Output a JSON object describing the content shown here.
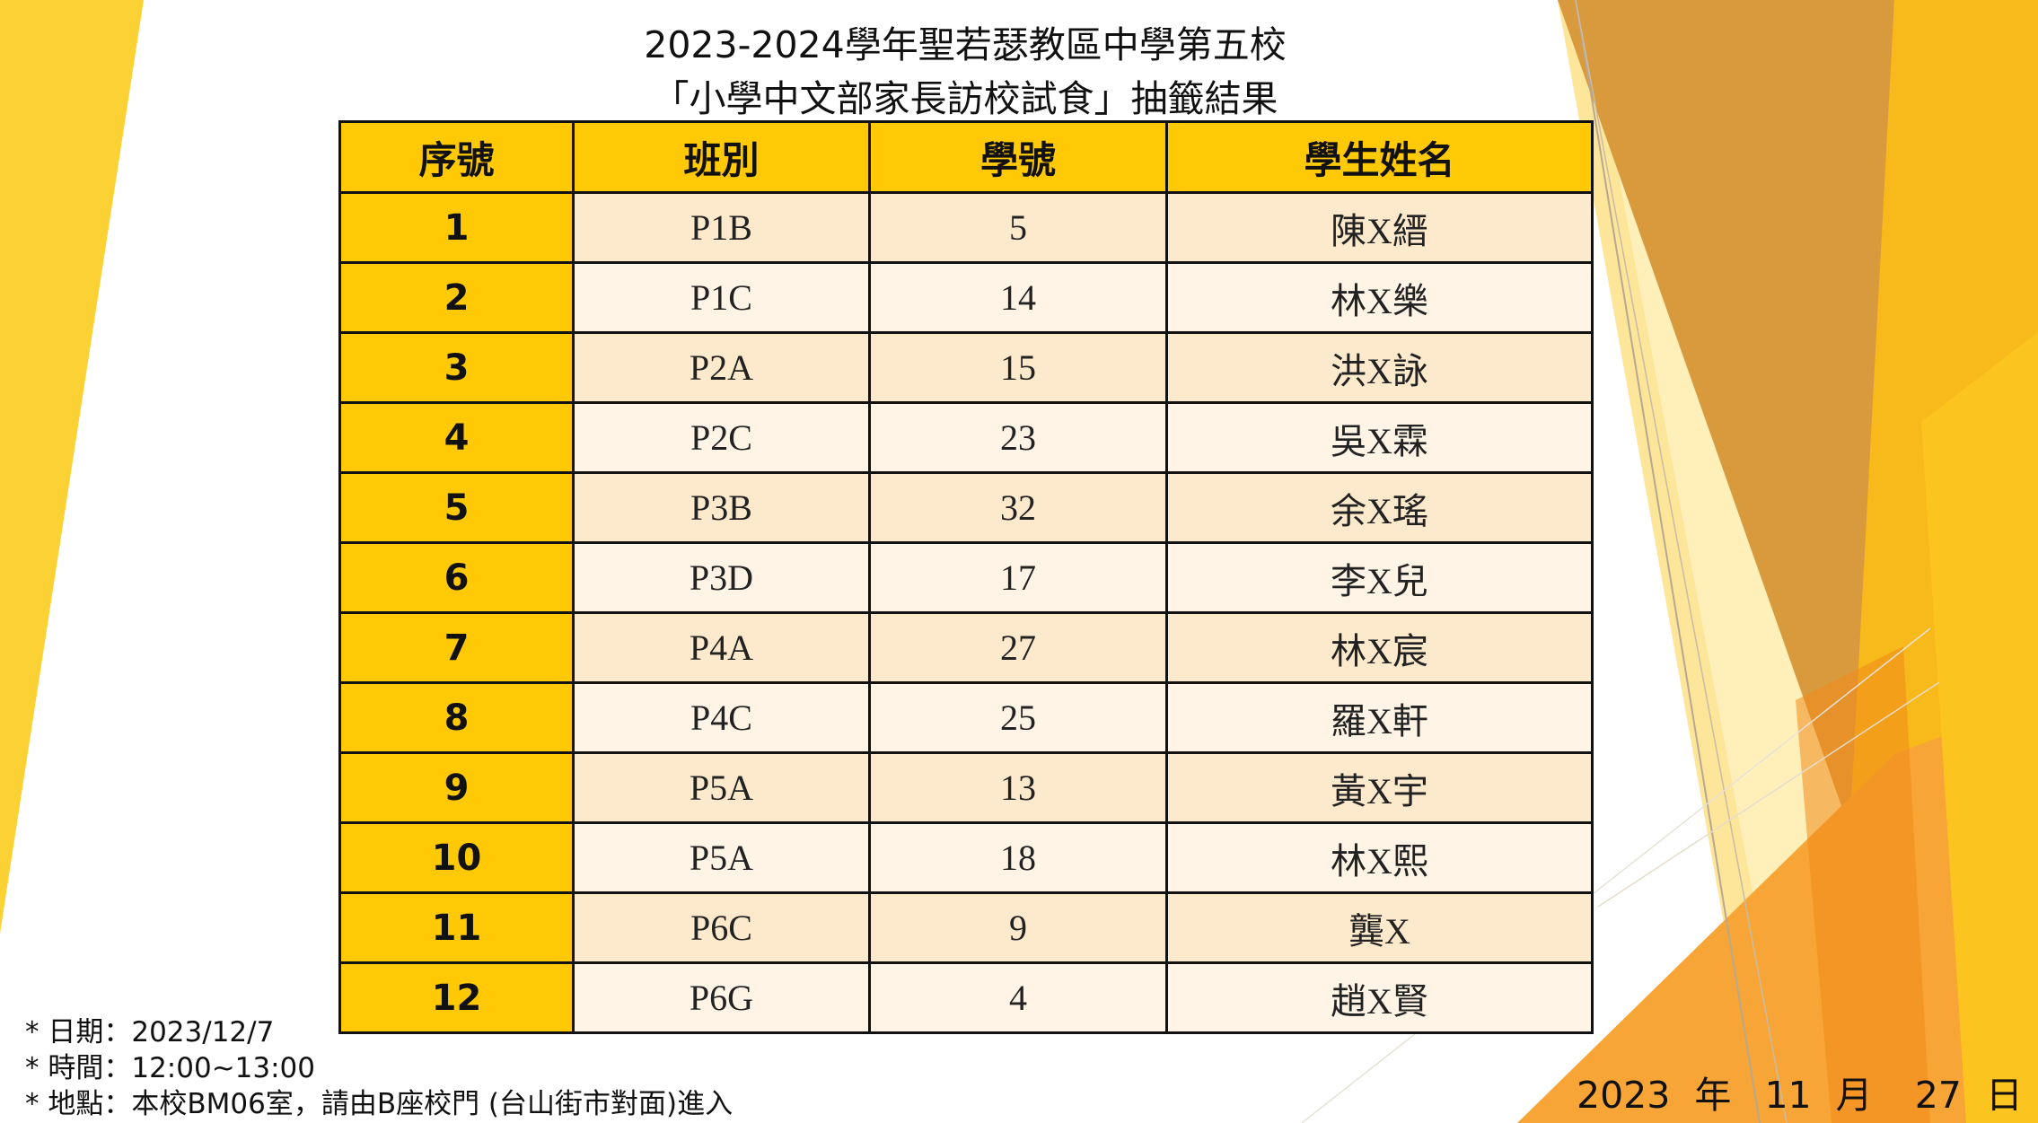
{
  "title_line1": "2023-2024學年聖若瑟教區中學第五校",
  "title_line2": "「小學中文部家長訪校試食」抽籤結果",
  "table": {
    "headers": [
      "序號",
      "班別",
      "學號",
      "學生姓名"
    ],
    "rows": [
      {
        "seq": "1",
        "class": "P1B",
        "number": "5",
        "name": "陳X縉"
      },
      {
        "seq": "2",
        "class": "P1C",
        "number": "14",
        "name": "林X樂"
      },
      {
        "seq": "3",
        "class": "P2A",
        "number": "15",
        "name": "洪X詠"
      },
      {
        "seq": "4",
        "class": "P2C",
        "number": "23",
        "name": "吳X霖"
      },
      {
        "seq": "5",
        "class": "P3B",
        "number": "32",
        "name": "余X瑤"
      },
      {
        "seq": "6",
        "class": "P3D",
        "number": "17",
        "name": "李X兒"
      },
      {
        "seq": "7",
        "class": "P4A",
        "number": "27",
        "name": "林X宸"
      },
      {
        "seq": "8",
        "class": "P4C",
        "number": "25",
        "name": "羅X軒"
      },
      {
        "seq": "9",
        "class": "P5A",
        "number": "13",
        "name": "黃X宇"
      },
      {
        "seq": "10",
        "class": "P5A",
        "number": "18",
        "name": "林X熙"
      },
      {
        "seq": "11",
        "class": "P6C",
        "number": "9",
        "name": "龔X"
      },
      {
        "seq": "12",
        "class": "P6G",
        "number": "4",
        "name": "趙X賢"
      }
    ]
  },
  "notes": {
    "date": "* 日期：2023/12/7",
    "time": "* 時間：12:00~13:00",
    "location": "* 地點：本校BM06室，請由B座校門 (台山街市對面)進入"
  },
  "date_stamp": {
    "year": "2023",
    "year_unit": "年",
    "month": "11",
    "month_unit": "月",
    "day": "27",
    "day_unit": "日"
  },
  "colors": {
    "header_yellow": "#ffc905",
    "row_odd": "#fde9cc",
    "row_even": "#fff4e6",
    "border": "#111111"
  }
}
